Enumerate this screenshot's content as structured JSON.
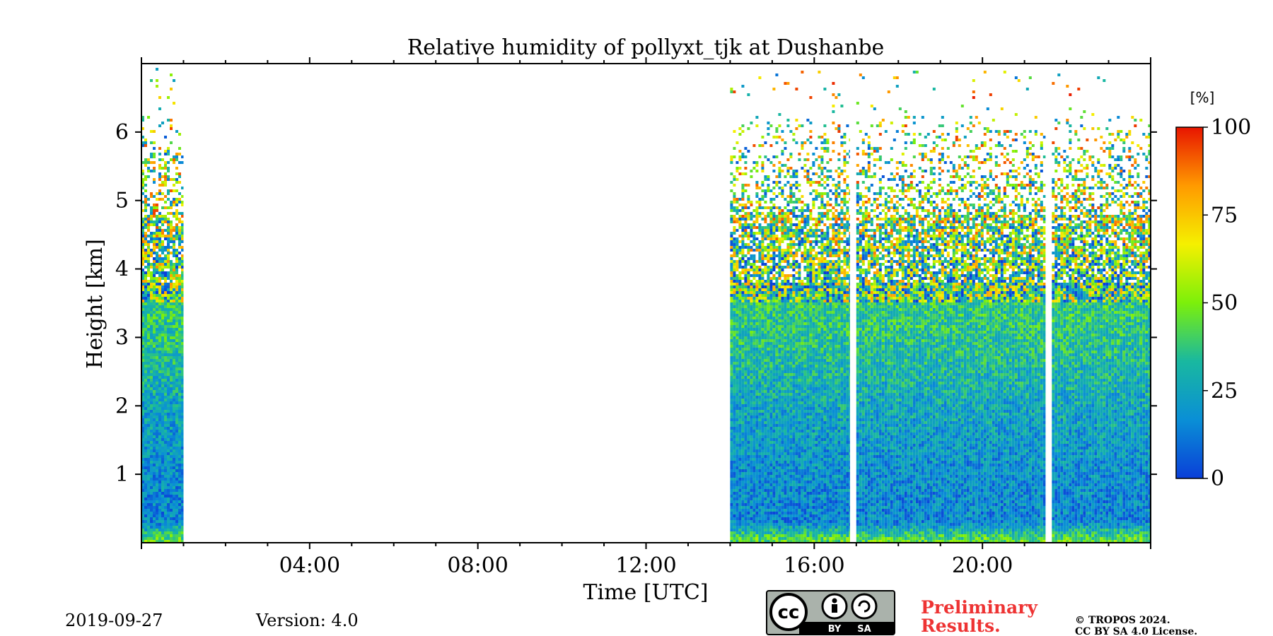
{
  "chart_data": {
    "type": "heatmap",
    "title": "Relative humidity of pollyxt_tjk at Dushanbe",
    "xlabel": "Time [UTC]",
    "ylabel": "Height [km]",
    "xlim": [
      0,
      24
    ],
    "ylim": [
      0,
      7
    ],
    "x_ticks": [
      {
        "value": 4,
        "label": "04:00"
      },
      {
        "value": 8,
        "label": "08:00"
      },
      {
        "value": 12,
        "label": "12:00"
      },
      {
        "value": 16,
        "label": "16:00"
      },
      {
        "value": 20,
        "label": "20:00"
      }
    ],
    "y_ticks": [
      {
        "value": 1,
        "label": "1"
      },
      {
        "value": 2,
        "label": "2"
      },
      {
        "value": 3,
        "label": "3"
      },
      {
        "value": 4,
        "label": "4"
      },
      {
        "value": 5,
        "label": "5"
      },
      {
        "value": 6,
        "label": "6"
      }
    ],
    "colorbar": {
      "unit": "[%]",
      "range": [
        0,
        100
      ],
      "ticks": [
        {
          "value": 0,
          "label": "0"
        },
        {
          "value": 25,
          "label": "25"
        },
        {
          "value": 50,
          "label": "50"
        },
        {
          "value": 75,
          "label": "75"
        },
        {
          "value": 100,
          "label": "100"
        }
      ],
      "colormap": [
        "#0a3fd8",
        "#0a8fd6",
        "#19b8a0",
        "#7cf00a",
        "#f5f000",
        "#ff9a00",
        "#e81500"
      ]
    },
    "data_segments": [
      {
        "start_hour": 0.0,
        "end_hour": 1.0,
        "signal_top_km": 7.0
      },
      {
        "start_hour": 14.0,
        "end_hour": 16.85,
        "signal_top_km": 6.9
      },
      {
        "start_hour": 17.0,
        "end_hour": 21.5,
        "signal_top_km": 6.9
      },
      {
        "start_hour": 21.65,
        "end_hour": 24.0,
        "signal_top_km": 6.9
      }
    ],
    "humidity_profile": [
      {
        "height_km": 0.05,
        "rh": 45
      },
      {
        "height_km": 0.3,
        "rh": 15
      },
      {
        "height_km": 1.0,
        "rh": 18
      },
      {
        "height_km": 2.0,
        "rh": 25
      },
      {
        "height_km": 3.0,
        "rh": 35
      },
      {
        "height_km": 4.0,
        "rh": 40
      },
      {
        "height_km": 4.8,
        "rh": 50
      },
      {
        "height_km": 5.5,
        "rh": 48
      },
      {
        "height_km": 6.5,
        "rh": 55
      }
    ]
  },
  "footer": {
    "date": "2019-09-27",
    "version": "Version: 4.0",
    "preliminary_line1": "Preliminary",
    "preliminary_line2": "Results.",
    "copyright_line1": "© TROPOS 2024.",
    "copyright_line2": "CC BY SA 4.0 License.",
    "cc_logo_text": "cc",
    "cc_by": "BY",
    "cc_sa": "SA"
  }
}
